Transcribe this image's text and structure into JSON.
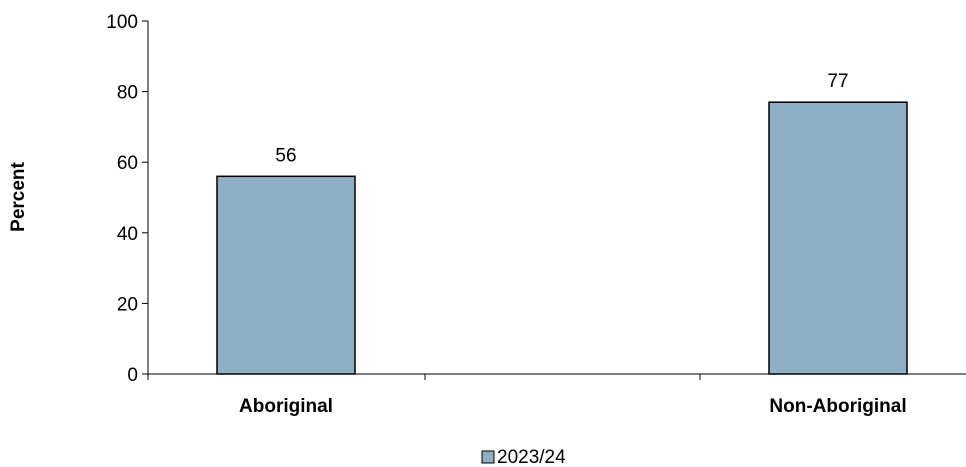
{
  "chart_data": {
    "type": "bar",
    "categories": [
      "Aboriginal",
      "Non-Aboriginal"
    ],
    "series": [
      {
        "name": "2023/24",
        "values": [
          56,
          77
        ],
        "color": "#8eafc5"
      }
    ],
    "data_labels": [
      "56",
      "77"
    ],
    "xlabel": "",
    "ylabel": "Percent",
    "ylim": [
      0,
      100
    ],
    "yticks": [
      0,
      20,
      40,
      60,
      80,
      100
    ],
    "grid": false,
    "legend": {
      "position": "bottom"
    }
  }
}
